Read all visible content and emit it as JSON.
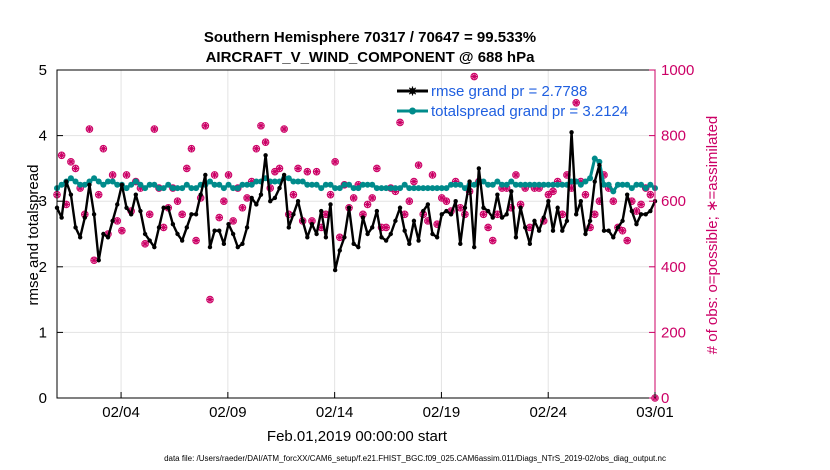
{
  "chart_data": {
    "type": "line",
    "title": "Southern Hemisphere 70317 / 70647 = 99.533%",
    "subtitle": "AIRCRAFT_V_WIND_COMPONENT @ 688 hPa",
    "xlabel": "Feb.01,2019 00:00:00 start",
    "ylabel": "rmse and totalspread",
    "ylabel_right": "# of obs: o=possible; ∗=assimilated",
    "footnote": "data file: /Users/raeder/DAI/ATM_forcXX/CAM6_setup/f.e21.FHIST_BGC.f09_025.CAM6assim.011/Diags_NTrS_2019-02/obs_diag_output.nc",
    "xlim": [
      1,
      29
    ],
    "ylim": [
      0,
      5
    ],
    "ylim_right": [
      0,
      1000
    ],
    "xticks": [
      4,
      9,
      14,
      19,
      24,
      29
    ],
    "xtick_labels": [
      "02/04",
      "02/09",
      "02/14",
      "02/19",
      "02/24",
      "03/01"
    ],
    "yticks": [
      0,
      1,
      2,
      3,
      4,
      5
    ],
    "yticks_right": [
      0,
      200,
      400,
      600,
      800,
      1000
    ],
    "grid": true,
    "legend": {
      "position": "top-right",
      "entries": [
        "rmse grand pr = 2.7788",
        "totalspread grand pr = 3.2124"
      ]
    },
    "colors": {
      "rmse": "#000000",
      "spread": "#008b8b",
      "obs": "#cc0066"
    },
    "series": [
      {
        "name": "rmse",
        "axis": "left",
        "values": [
          2.9,
          2.75,
          3.3,
          3.1,
          2.6,
          2.45,
          2.75,
          3.25,
          2.8,
          2.1,
          2.5,
          2.45,
          2.7,
          2.95,
          3.25,
          2.9,
          2.8,
          3.1,
          2.85,
          2.5,
          2.4,
          2.3,
          2.6,
          2.9,
          2.9,
          2.65,
          2.5,
          2.4,
          2.6,
          2.8,
          2.8,
          3.1,
          3.4,
          2.3,
          2.55,
          2.55,
          2.35,
          2.65,
          2.5,
          2.3,
          2.35,
          2.6,
          3.05,
          2.95,
          3.1,
          3.7,
          3.0,
          3.05,
          3.2,
          3.4,
          2.6,
          2.8,
          3.0,
          2.7,
          2.45,
          2.65,
          2.5,
          2.85,
          2.45,
          2.95,
          1.95,
          2.25,
          2.45,
          2.9,
          2.35,
          2.3,
          2.75,
          2.5,
          2.6,
          2.85,
          2.45,
          2.4,
          2.5,
          2.7,
          2.9,
          2.55,
          2.35,
          2.7,
          2.4,
          2.85,
          2.95,
          2.5,
          2.45,
          2.8,
          2.85,
          2.8,
          3.0,
          2.35,
          2.9,
          3.3,
          2.3,
          3.5,
          2.9,
          2.85,
          2.75,
          3.1,
          2.75,
          2.8,
          3.15,
          2.45,
          2.9,
          2.6,
          2.35,
          2.7,
          2.55,
          2.75,
          3.0,
          2.55,
          2.9,
          2.55,
          2.7,
          4.05,
          2.8,
          3.0,
          2.5,
          2.7,
          3.3,
          3.55,
          2.55,
          2.55,
          2.45,
          2.6,
          2.7,
          3.1,
          2.85,
          2.65,
          2.8,
          2.8,
          2.85,
          3.0
        ]
      },
      {
        "name": "totalspread",
        "axis": "left",
        "values": [
          3.2,
          3.25,
          3.3,
          3.35,
          3.3,
          3.25,
          3.25,
          3.3,
          3.35,
          3.3,
          3.25,
          3.3,
          3.3,
          3.25,
          3.25,
          3.2,
          3.25,
          3.3,
          3.25,
          3.2,
          3.25,
          3.25,
          3.2,
          3.2,
          3.25,
          3.2,
          3.2,
          3.2,
          3.25,
          3.2,
          3.2,
          3.25,
          3.25,
          3.3,
          3.25,
          3.25,
          3.2,
          3.25,
          3.2,
          3.2,
          3.25,
          3.25,
          3.25,
          3.3,
          3.3,
          3.35,
          3.3,
          3.3,
          3.3,
          3.35,
          3.35,
          3.3,
          3.3,
          3.3,
          3.25,
          3.25,
          3.25,
          3.2,
          3.25,
          3.25,
          3.2,
          3.2,
          3.25,
          3.25,
          3.2,
          3.2,
          3.25,
          3.25,
          3.25,
          3.2,
          3.2,
          3.2,
          3.2,
          3.2,
          3.2,
          3.25,
          3.2,
          3.2,
          3.2,
          3.2,
          3.2,
          3.2,
          3.2,
          3.2,
          3.2,
          3.25,
          3.25,
          3.25,
          3.2,
          3.25,
          3.25,
          3.3,
          3.3,
          3.25,
          3.25,
          3.3,
          3.25,
          3.25,
          3.3,
          3.25,
          3.25,
          3.25,
          3.25,
          3.25,
          3.25,
          3.25,
          3.25,
          3.25,
          3.25,
          3.25,
          3.25,
          3.3,
          3.3,
          3.25,
          3.3,
          3.35,
          3.65,
          3.6,
          3.25,
          3.25,
          3.15,
          3.25,
          3.25,
          3.25,
          3.2,
          3.25,
          3.25,
          3.2,
          3.25,
          3.2
        ]
      },
      {
        "name": "obs possible",
        "axis": "right",
        "marker": "o",
        "values": [
          620,
          740,
          590,
          720,
          700,
          640,
          560,
          820,
          420,
          620,
          760,
          500,
          680,
          540,
          510,
          680,
          570,
          660,
          640,
          470,
          560,
          820,
          640,
          520,
          580,
          640,
          600,
          560,
          700,
          760,
          480,
          610,
          830,
          300,
          680,
          550,
          600,
          680,
          540,
          640,
          580,
          610,
          660,
          760,
          830,
          780,
          640,
          690,
          700,
          820,
          560,
          620,
          700,
          540,
          690,
          540,
          690,
          520,
          560,
          620,
          720,
          490,
          650,
          580,
          610,
          650,
          560,
          590,
          610,
          700,
          520,
          520,
          640,
          630,
          840,
          560,
          600,
          660,
          710,
          560,
          540,
          680,
          530,
          610,
          600,
          570,
          660,
          580,
          560,
          630,
          980,
          660,
          560,
          520,
          480,
          560,
          640,
          640,
          580,
          680,
          590,
          640,
          520,
          640,
          640,
          540,
          620,
          630,
          660,
          560,
          680,
          640,
          900,
          660,
          620,
          520,
          560,
          600,
          680,
          640,
          600,
          520,
          510,
          480,
          600,
          570,
          590,
          640,
          620,
          0
        ]
      },
      {
        "name": "obs assimilated",
        "axis": "right",
        "marker": "*",
        "values": [
          620,
          740,
          590,
          720,
          700,
          640,
          560,
          820,
          420,
          620,
          760,
          500,
          680,
          540,
          510,
          680,
          570,
          660,
          640,
          470,
          560,
          820,
          640,
          520,
          580,
          640,
          600,
          560,
          700,
          760,
          480,
          610,
          830,
          300,
          680,
          550,
          600,
          680,
          540,
          640,
          580,
          610,
          660,
          760,
          830,
          780,
          640,
          690,
          700,
          820,
          560,
          620,
          700,
          540,
          690,
          540,
          690,
          520,
          560,
          620,
          720,
          490,
          650,
          580,
          610,
          650,
          560,
          590,
          610,
          700,
          520,
          520,
          640,
          630,
          840,
          560,
          600,
          660,
          710,
          560,
          540,
          680,
          530,
          610,
          600,
          570,
          660,
          580,
          560,
          630,
          980,
          660,
          560,
          520,
          480,
          560,
          640,
          640,
          580,
          680,
          590,
          640,
          520,
          640,
          640,
          540,
          620,
          630,
          660,
          560,
          680,
          640,
          900,
          660,
          620,
          520,
          560,
          600,
          680,
          640,
          600,
          520,
          510,
          480,
          600,
          570,
          590,
          640,
          620,
          0
        ]
      }
    ]
  }
}
